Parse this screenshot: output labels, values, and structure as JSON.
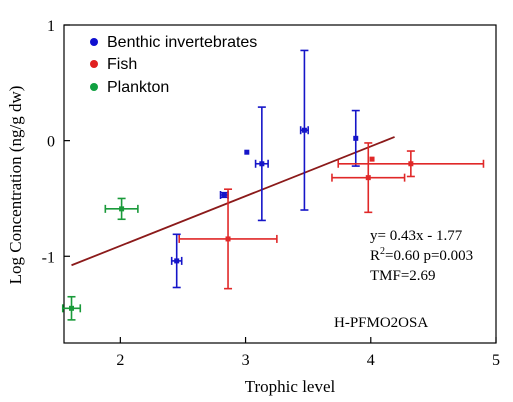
{
  "chart_data": {
    "type": "scatter",
    "xlabel": "Trophic level",
    "ylabel": "Log Concentration (ng/g dw)",
    "xlim": [
      1.55,
      5.0
    ],
    "ylim": [
      -1.75,
      1.0
    ],
    "xticks": [
      2,
      3,
      4,
      5
    ],
    "yticks": [
      1,
      0,
      -1
    ],
    "xtick_labels": [
      "2",
      "3",
      "4",
      "5"
    ],
    "ytick_labels": [
      "1",
      "0",
      "-1"
    ],
    "grid": false,
    "legend_position": "top-left",
    "legend": [
      {
        "label": "Benthic invertebrates",
        "color": "#1010d0"
      },
      {
        "label": "Fish",
        "color": "#e02020"
      },
      {
        "label": "Plankton",
        "color": "#10a040"
      }
    ],
    "series": [
      {
        "name": "Benthic invertebrates",
        "color": "#1515c8",
        "points": [
          {
            "x": 2.45,
            "y": -1.04,
            "xerr": 0.04,
            "yerr": 0.23
          },
          {
            "x": 2.83,
            "y": -0.47,
            "xerr": 0.03,
            "yerr": 0.02
          },
          {
            "x": 3.01,
            "y": -0.1,
            "xerr": 0.0,
            "yerr": 0.0
          },
          {
            "x": 3.13,
            "y": -0.2,
            "xerr": 0.05,
            "yerr": 0.49
          },
          {
            "x": 3.47,
            "y": 0.09,
            "xerr": 0.03,
            "yerr": 0.69
          },
          {
            "x": 3.88,
            "y": 0.02,
            "xerr": 0.0,
            "yerr": 0.24
          }
        ]
      },
      {
        "name": "Fish",
        "color": "#e02828",
        "points": [
          {
            "x": 2.86,
            "y": -0.85,
            "xerr": 0.39,
            "yerr": 0.43
          },
          {
            "x": 3.98,
            "y": -0.32,
            "xerr": 0.29,
            "yerr": 0.3
          },
          {
            "x": 4.01,
            "y": -0.16,
            "xerr": 0.0,
            "yerr": 0.0
          },
          {
            "x": 4.32,
            "y": -0.2,
            "xerr": 0.58,
            "yerr": 0.11
          }
        ]
      },
      {
        "name": "Plankton",
        "color": "#1a9a3a",
        "points": [
          {
            "x": 2.01,
            "y": -0.59,
            "xerr": 0.13,
            "yerr": 0.09
          },
          {
            "x": 1.61,
            "y": -1.45,
            "xerr": 0.07,
            "yerr": 0.1
          }
        ]
      }
    ],
    "regression": {
      "slope": 0.43,
      "intercept": -1.77,
      "x_start": 1.61,
      "x_end": 4.19,
      "color": "#8b1a1a"
    },
    "annotations": {
      "equation": "y= 0.43x - 1.77",
      "r2_prefix": "R",
      "r2_sup": "2",
      "r2_rest": "=0.60 p=0.003",
      "tmf": "TMF=2.69",
      "compound": "H-PFMO2OSA"
    }
  }
}
